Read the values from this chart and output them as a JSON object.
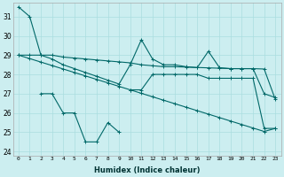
{
  "xlabel": "Humidex (Indice chaleur)",
  "bg_color": "#cceef0",
  "grid_color": "#aadddf",
  "line_color": "#006868",
  "xlim": [
    -0.5,
    23.5
  ],
  "ylim": [
    23.8,
    31.7
  ],
  "xticks": [
    0,
    1,
    2,
    3,
    4,
    5,
    6,
    7,
    8,
    9,
    10,
    11,
    12,
    13,
    14,
    15,
    16,
    17,
    18,
    19,
    20,
    21,
    22,
    23
  ],
  "yticks": [
    24,
    25,
    26,
    27,
    28,
    29,
    30,
    31
  ],
  "line_steep": [
    31.5,
    31.0,
    29.0,
    28.8,
    28.5,
    28.3,
    28.1,
    27.9,
    27.7,
    27.5,
    28.5,
    29.8,
    28.8,
    28.5,
    28.5,
    28.4,
    28.35,
    29.2,
    28.35,
    28.3,
    28.3,
    28.3,
    27.0,
    26.8
  ],
  "line_flat": [
    29.0,
    29.0,
    29.0,
    29.0,
    28.9,
    28.85,
    28.8,
    28.75,
    28.7,
    28.65,
    28.6,
    28.5,
    28.45,
    28.4,
    28.4,
    28.38,
    28.36,
    28.34,
    28.32,
    28.3,
    28.3,
    28.3,
    28.28,
    26.7
  ],
  "line_trend": [
    29.0,
    28.82,
    28.64,
    28.46,
    28.28,
    28.1,
    27.92,
    27.74,
    27.56,
    27.38,
    27.2,
    27.02,
    26.84,
    26.66,
    26.48,
    26.3,
    26.12,
    25.94,
    25.76,
    25.58,
    25.4,
    25.22,
    25.04,
    25.2
  ],
  "line_bottom": [
    null,
    null,
    27.0,
    27.0,
    26.0,
    26.0,
    24.5,
    24.5,
    25.5,
    25.0,
    null,
    null,
    null,
    null,
    null,
    null,
    null,
    null,
    null,
    null,
    null,
    null,
    null,
    null
  ],
  "line_mid_rise": [
    null,
    null,
    null,
    null,
    null,
    null,
    null,
    null,
    null,
    null,
    27.2,
    27.2,
    28.0,
    28.0,
    28.0,
    28.0,
    28.0,
    27.8,
    27.8,
    27.8,
    27.8,
    27.8,
    25.2,
    25.2
  ]
}
